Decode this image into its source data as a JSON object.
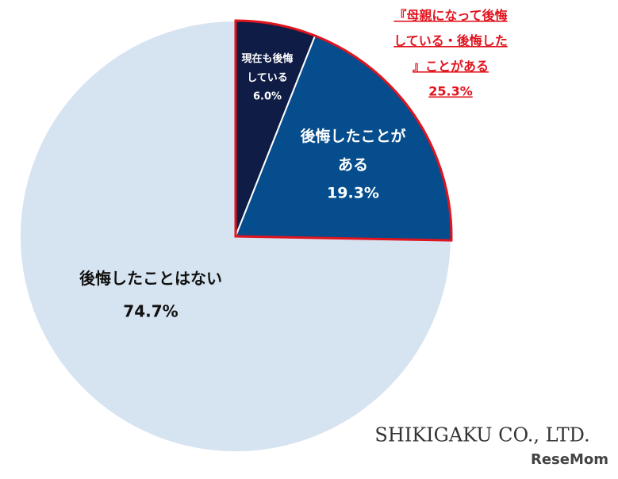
{
  "chart_data": {
    "type": "pie",
    "categories": [
      "現在も後悔している",
      "後悔したことがある",
      "後悔したことはない"
    ],
    "values": [
      6.0,
      19.3,
      74.7
    ],
    "value_labels": [
      "6.0%",
      "19.3%",
      "74.7%"
    ],
    "colors": [
      "#0f1c45",
      "#054d8c",
      "#d6e3f1"
    ],
    "annotation": {
      "text": "『母親になって後悔している・後悔した』ことがある",
      "value": 25.3,
      "label": "25.3%",
      "color": "#e0141e"
    },
    "footer": "SHIKIGAKU CO., LTD.",
    "watermark": "ReseMom"
  }
}
